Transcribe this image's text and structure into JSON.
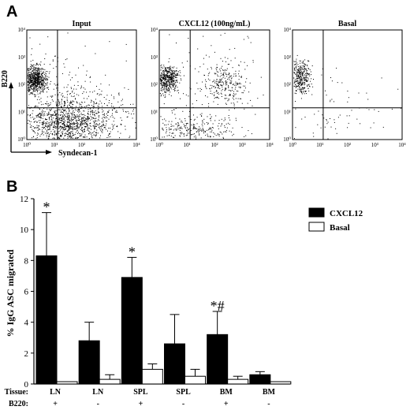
{
  "figure": {
    "panel_a_letter": "A",
    "panel_b_letter": "B",
    "panel_a_y_axis": "B220",
    "panel_a_x_axis": "Syndecan-1"
  },
  "flow_panels": [
    {
      "title": "Input"
    },
    {
      "title": "CXCL12 (100ng/mL)"
    },
    {
      "title": "Basal"
    }
  ],
  "flow_ticks": [
    "10⁰",
    "10¹",
    "10²",
    "10³",
    "10⁴"
  ],
  "chart_data": {
    "type": "bar",
    "ylabel": "% IgG ASC migrated",
    "ylim": [
      0,
      12
    ],
    "yticks": [
      "0",
      "2",
      "4",
      "6",
      "8",
      "10",
      "12"
    ],
    "row_labels": {
      "tissue": "Tissue:",
      "b220": "B220:"
    },
    "categories": [
      {
        "tissue": "LN",
        "b220": "+"
      },
      {
        "tissue": "LN",
        "b220": "-"
      },
      {
        "tissue": "SPL",
        "b220": "+"
      },
      {
        "tissue": "SPL",
        "b220": "-"
      },
      {
        "tissue": "BM",
        "b220": "+"
      },
      {
        "tissue": "BM",
        "b220": "-"
      }
    ],
    "series": [
      {
        "name": "CXCL12",
        "color": "#000000",
        "values": [
          8.3,
          2.8,
          6.9,
          2.6,
          3.2,
          0.6
        ],
        "errors": [
          2.8,
          1.2,
          1.3,
          1.9,
          1.5,
          0.2
        ]
      },
      {
        "name": "Basal",
        "color": "#ffffff",
        "values": [
          0.15,
          0.3,
          0.95,
          0.5,
          0.3,
          0.15
        ],
        "errors": [
          0.0,
          0.3,
          0.35,
          0.45,
          0.2,
          0.0
        ]
      }
    ],
    "annotations": [
      "*",
      "",
      "*",
      "",
      "*#",
      ""
    ],
    "legend_position": "top-right"
  }
}
